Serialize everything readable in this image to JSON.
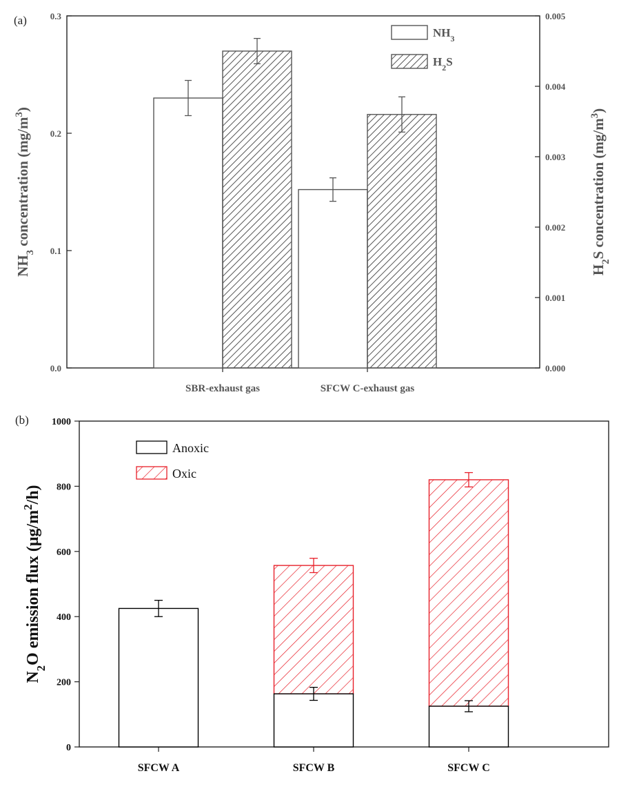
{
  "chart_data": [
    {
      "type": "bar",
      "panel_label": "(a)",
      "categories": [
        "SBR-exhaust gas",
        "SFCW C-exhaust gas"
      ],
      "axes": {
        "left": {
          "label_main": "NH",
          "label_sub": "3",
          "label_rest": " concentration (mg/m",
          "label_sup": "3",
          "label_end": ")",
          "ylim": [
            0.0,
            0.3
          ],
          "ticks": [
            "0.0",
            "0.1",
            "0.2",
            "0.3"
          ]
        },
        "right": {
          "label_main": "H",
          "label_sub": "2",
          "label_mid": "S concentration (mg/m",
          "label_sup": "3",
          "label_end": ")",
          "ylim": [
            0.0,
            0.005
          ],
          "ticks": [
            "0.000",
            "0.001",
            "0.002",
            "0.003",
            "0.004",
            "0.005"
          ]
        }
      },
      "series": [
        {
          "name_main": "NH",
          "name_sub": "3",
          "axis": "left",
          "fill": "open",
          "values": [
            0.23,
            0.152
          ],
          "errors": [
            0.015,
            0.01
          ]
        },
        {
          "name_main": "H",
          "name_sub": "2",
          "name_end": "S",
          "axis": "right",
          "fill": "hatched",
          "values": [
            0.0045,
            0.0036
          ],
          "errors": [
            0.00018,
            0.00025
          ]
        }
      ],
      "legend_position": "top-right",
      "colors": {
        "line": "#555555"
      }
    },
    {
      "type": "bar",
      "stacked": true,
      "panel_label": "(b)",
      "categories": [
        "SFCW A",
        "SFCW B",
        "SFCW C"
      ],
      "ylabel_main": "N",
      "ylabel_sub": "2",
      "ylabel_rest": "O emission flux (μg/m",
      "ylabel_sup": "2",
      "ylabel_end": "/h)",
      "ylim": [
        0,
        1000
      ],
      "yticks": [
        "0",
        "200",
        "400",
        "600",
        "800",
        "1000"
      ],
      "series": [
        {
          "name": "Anoxic",
          "fill": "open",
          "color": "#000000",
          "values": [
            425,
            163,
            125
          ],
          "errors": [
            25,
            20,
            17
          ]
        },
        {
          "name": "Oxic",
          "fill": "hatched",
          "color": "#e8202a",
          "values": [
            0,
            394,
            695
          ],
          "totals": [
            425,
            557,
            820
          ],
          "errors": [
            0,
            22,
            22
          ]
        }
      ],
      "legend_position": "top-left"
    }
  ]
}
